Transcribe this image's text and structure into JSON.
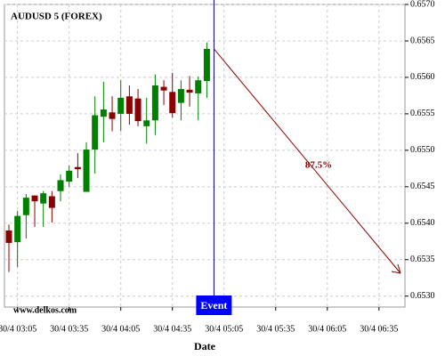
{
  "chart_data": {
    "type": "candlestick",
    "title": "AUDUSD 5 (FOREX)",
    "watermark": "www.delkos.com",
    "x_label": "Date",
    "categories": [
      null,
      "30/4 03:05",
      null,
      null,
      null,
      null,
      null,
      "30/4 03:35",
      null,
      null,
      null,
      null,
      null,
      "30/4 04:05",
      null,
      null,
      null,
      null,
      null,
      "30/4 04:35",
      null,
      null,
      null,
      null,
      null,
      "30/4 05:05",
      null,
      null,
      null,
      null,
      null,
      "30/4 05:35",
      null,
      null,
      null,
      null,
      null,
      "30/4 06:05",
      null,
      null,
      null,
      null,
      null,
      "30/4 06:35",
      null,
      null
    ],
    "open": [
      0.6539,
      0.65374,
      0.65411,
      0.65438,
      0.65427,
      0.65437,
      0.65444,
      0.65457,
      0.65477,
      0.65443,
      0.65501,
      0.65546,
      0.65552,
      0.6555,
      0.65574,
      0.65571,
      0.65533,
      0.65541,
      0.65587,
      0.6558,
      0.65565,
      0.65583,
      0.65578,
      0.65595,
      null,
      null,
      null,
      null,
      null,
      null,
      null,
      null,
      null,
      null,
      null,
      null,
      null,
      null,
      null,
      null,
      null,
      null,
      null,
      null,
      null,
      null
    ],
    "high": [
      0.65398,
      0.65417,
      0.6544,
      0.65438,
      0.65444,
      0.65444,
      0.65467,
      0.65479,
      0.65496,
      0.65511,
      0.65574,
      0.65594,
      0.65574,
      0.65596,
      0.65589,
      0.65584,
      0.65572,
      0.65604,
      0.65596,
      0.65606,
      0.65596,
      0.65602,
      0.65601,
      0.65648,
      null,
      null,
      null,
      null,
      null,
      null,
      null,
      null,
      null,
      null,
      null,
      null,
      null,
      null,
      null,
      null,
      null,
      null,
      null,
      null,
      null,
      null
    ],
    "low": [
      0.65333,
      0.6534,
      0.65379,
      0.65395,
      0.65395,
      0.65401,
      0.6543,
      0.6545,
      0.65462,
      0.65443,
      0.65468,
      0.65511,
      0.65526,
      0.65526,
      0.65535,
      0.65533,
      0.65509,
      0.65521,
      0.65562,
      0.65545,
      0.65541,
      0.6556,
      0.65541,
      0.65572,
      null,
      null,
      null,
      null,
      null,
      null,
      null,
      null,
      null,
      null,
      null,
      null,
      null,
      null,
      null,
      null,
      null,
      null,
      null,
      null,
      null,
      null
    ],
    "close": [
      0.65373,
      0.6541,
      0.65435,
      0.6543,
      0.65441,
      0.65421,
      0.65459,
      0.65472,
      0.65474,
      0.65501,
      0.65548,
      0.65556,
      0.65543,
      0.65572,
      0.6555,
      0.6554,
      0.65541,
      0.65589,
      0.65582,
      0.65551,
      0.65584,
      0.65579,
      0.65596,
      0.65639,
      null,
      null,
      null,
      null,
      null,
      null,
      null,
      null,
      null,
      null,
      null,
      null,
      null,
      null,
      null,
      null,
      null,
      null,
      null,
      null,
      null,
      null
    ],
    "up_color": "#008000",
    "down_color": "#8b0000",
    "ylim": [
      0.65285,
      0.657
    ],
    "yticks": [
      {
        "value": 0.653,
        "label": "0.6530"
      },
      {
        "value": 0.6535,
        "label": "0.6535"
      },
      {
        "value": 0.654,
        "label": "0.6540"
      },
      {
        "value": 0.6545,
        "label": "0.6545"
      },
      {
        "value": 0.655,
        "label": "0.6550"
      },
      {
        "value": 0.6555,
        "label": "0.6555"
      },
      {
        "value": 0.656,
        "label": "0.6560"
      },
      {
        "value": 0.6565,
        "label": "0.6565"
      },
      {
        "value": 0.657,
        "label": "0.6570"
      }
    ],
    "grid": true,
    "event_label": "Event",
    "forecast_label": "87.5%"
  }
}
